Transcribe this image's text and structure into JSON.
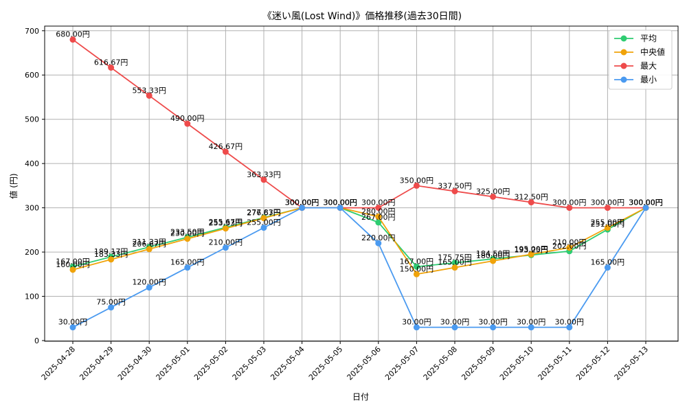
{
  "chart_data": {
    "type": "line",
    "title": "《迷い風(Lost Wind)》価格推移(過去30日間)",
    "xlabel": "日付",
    "ylabel": "値 (円)",
    "ylim": [
      0,
      700
    ],
    "yticks": [
      0,
      100,
      200,
      300,
      400,
      500,
      600,
      700
    ],
    "grid": true,
    "legend_position": "top-right",
    "value_suffix": "円",
    "categories": [
      "2025-04-28",
      "2025-04-29",
      "2025-04-30",
      "2025-05-01",
      "2025-05-02",
      "2025-05-03",
      "2025-05-04",
      "2025-05-05",
      "2025-05-06",
      "2025-05-07",
      "2025-05-08",
      "2025-05-09",
      "2025-05-10",
      "2025-05-11",
      "2025-05-12",
      "2025-05-13"
    ],
    "series": [
      {
        "name": "平均",
        "color": "#2ecc71",
        "values": [
          167.0,
          189.17,
          211.33,
          233.5,
          255.67,
          277.83,
          300.0,
          300.0,
          267.0,
          167.0,
          175.75,
          184.5,
          193.25,
          202.0,
          251.0,
          300.0
        ]
      },
      {
        "name": "中央値",
        "color": "#f0a30a",
        "values": [
          160.0,
          183.33,
          206.67,
          230.0,
          253.33,
          276.67,
          300.0,
          300.0,
          280.0,
          150.0,
          165.0,
          180.0,
          195.0,
          210.0,
          255.0,
          300.0
        ]
      },
      {
        "name": "最大",
        "color": "#ee4b4b",
        "values": [
          680.0,
          616.67,
          553.33,
          490.0,
          426.67,
          363.33,
          300.0,
          300.0,
          300.0,
          350.0,
          337.5,
          325.0,
          312.5,
          300.0,
          300.0,
          300.0
        ]
      },
      {
        "name": "最小",
        "color": "#4a9af0",
        "values": [
          30.0,
          75.0,
          120.0,
          165.0,
          210.0,
          255.0,
          300.0,
          300.0,
          220.0,
          30.0,
          30.0,
          30.0,
          30.0,
          30.0,
          165.0,
          300.0
        ]
      }
    ]
  }
}
